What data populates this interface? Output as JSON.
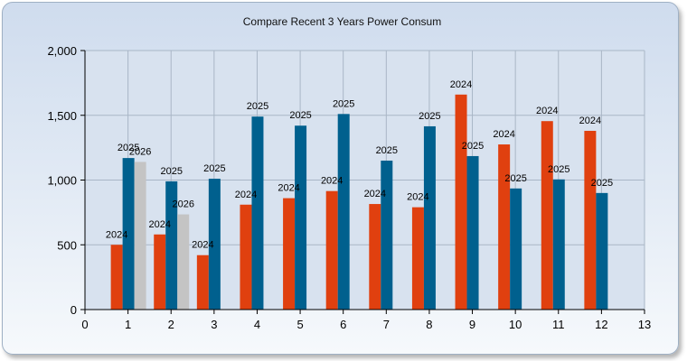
{
  "chart_data": {
    "type": "bar",
    "title": "Compare Recent 3 Years Power Consum",
    "xlabel": "",
    "ylabel": "",
    "xlim": [
      0,
      13
    ],
    "ylim": [
      0,
      2000
    ],
    "x_ticks": [
      "0",
      "1",
      "2",
      "3",
      "4",
      "5",
      "6",
      "7",
      "8",
      "9",
      "10",
      "11",
      "12",
      "13"
    ],
    "y_ticks": [
      "0",
      "500",
      "1,000",
      "1,500",
      "2,000"
    ],
    "grid": true,
    "series": [
      {
        "label": "2024",
        "color": "#e0400f",
        "x": [
          1,
          2,
          3,
          4,
          5,
          6,
          7,
          8,
          9,
          10,
          11,
          12
        ],
        "values": [
          500,
          580,
          420,
          810,
          860,
          915,
          815,
          790,
          1660,
          1275,
          1455,
          1380
        ]
      },
      {
        "label": "2025",
        "color": "#00608e",
        "x": [
          1,
          2,
          3,
          4,
          5,
          6,
          7,
          8,
          9,
          10,
          11,
          12
        ],
        "values": [
          1170,
          990,
          1010,
          1490,
          1420,
          1510,
          1150,
          1415,
          1185,
          935,
          1005,
          900
        ]
      },
      {
        "label": "2026",
        "color": "#c4c4c4",
        "x": [
          1,
          2
        ],
        "values": [
          1140,
          735
        ]
      }
    ]
  }
}
